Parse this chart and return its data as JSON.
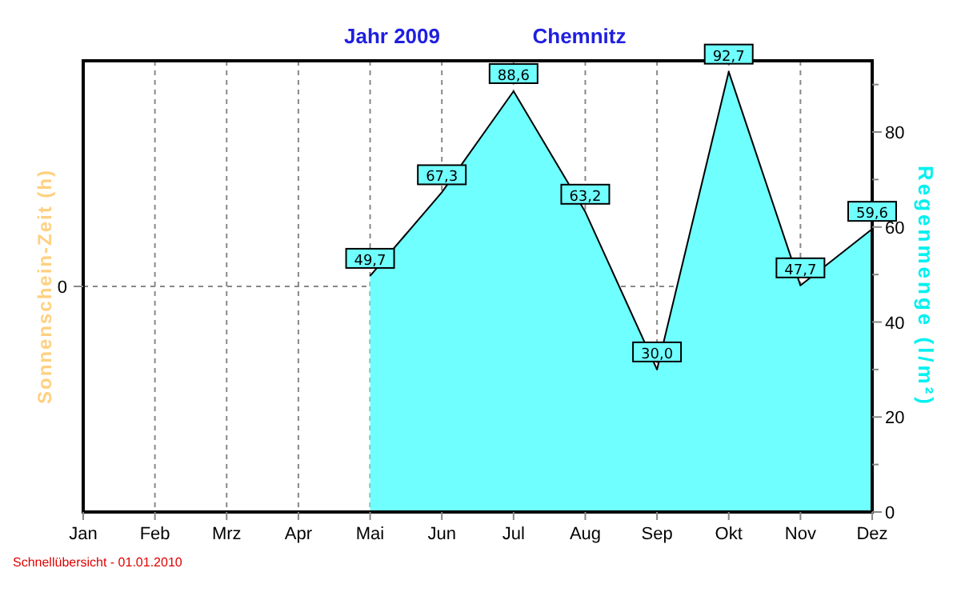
{
  "chart_data": {
    "type": "area",
    "title": "Jahr  2009",
    "subtitle": "Chemnitz",
    "ylabel": "Sonnenschein-Zeit  (h)",
    "y2label": "Regenmenge  (l/m²)",
    "categories": [
      "Jan",
      "Feb",
      "Mrz",
      "Apr",
      "Mai",
      "Jun",
      "Jul",
      "Aug",
      "Sep",
      "Okt",
      "Nov",
      "Dez"
    ],
    "series": [
      {
        "color": "#70ffff",
        "values": [
          null,
          null,
          null,
          null,
          49.7,
          67.3,
          88.6,
          63.2,
          30.0,
          92.7,
          47.7,
          59.6
        ],
        "value_labels": [
          null,
          null,
          null,
          null,
          "49,7",
          "67,3",
          "88,6",
          "63,2",
          "30,0",
          "92,7",
          "47,7",
          "59,6"
        ]
      }
    ],
    "y2lim": [
      0,
      95
    ],
    "y2ticks": [
      0,
      {
        "value": 10,
        "label": null
      },
      20,
      {
        "value": 30,
        "label": null
      },
      40,
      {
        "value": 50,
        "label": null
      },
      60,
      {
        "value": 70,
        "label": null
      },
      80,
      {
        "value": 90,
        "label": null
      }
    ],
    "grid": true,
    "annotations": [
      "Schnellübersicht - 01.01.2010",
      "0"
    ]
  }
}
